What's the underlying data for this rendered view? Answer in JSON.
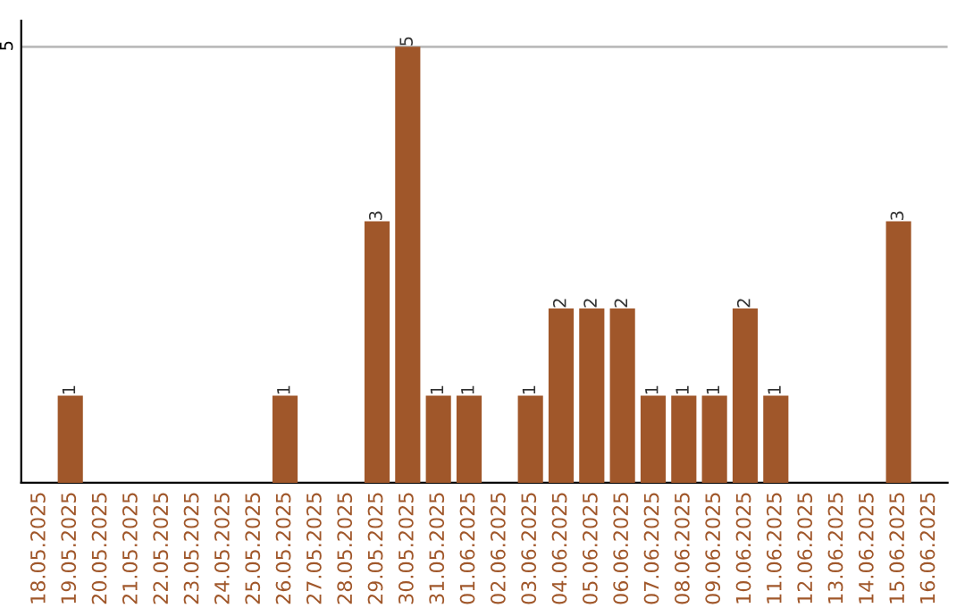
{
  "chart_data": {
    "type": "bar",
    "categories": [
      "18.05.2025",
      "19.05.2025",
      "20.05.2025",
      "21.05.2025",
      "22.05.2025",
      "23.05.2025",
      "24.05.2025",
      "25.05.2025",
      "26.05.2025",
      "27.05.2025",
      "28.05.2025",
      "29.05.2025",
      "30.05.2025",
      "31.05.2025",
      "01.06.2025",
      "02.06.2025",
      "03.06.2025",
      "04.06.2025",
      "05.06.2025",
      "06.06.2025",
      "07.06.2025",
      "08.06.2025",
      "09.06.2025",
      "10.06.2025",
      "11.06.2025",
      "12.06.2025",
      "13.06.2025",
      "14.06.2025",
      "15.06.2025",
      "16.06.2025"
    ],
    "values": [
      0,
      1,
      0,
      0,
      0,
      0,
      0,
      0,
      1,
      0,
      0,
      3,
      5,
      1,
      1,
      0,
      1,
      2,
      2,
      2,
      1,
      1,
      1,
      2,
      1,
      0,
      0,
      0,
      3,
      0
    ],
    "value_labels": [
      null,
      "1",
      null,
      null,
      null,
      null,
      null,
      null,
      "1",
      null,
      null,
      "3",
      "5",
      "1",
      "1",
      null,
      "1",
      "2",
      "2",
      "2",
      "1",
      "1",
      "1",
      "2",
      "1",
      null,
      null,
      null,
      "3",
      null
    ],
    "color": "#a0572a",
    "ylim": [
      0,
      5.3
    ],
    "yticks": [
      5
    ],
    "grid": "y"
  }
}
